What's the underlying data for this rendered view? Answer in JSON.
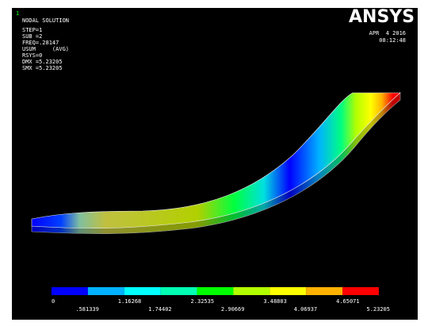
{
  "header": {
    "marker": "1",
    "title": "NODAL SOLUTION",
    "info": [
      "STEP=1",
      "SUB =2",
      "FREQ=.28147",
      "USUM     (AVG)",
      "RSYS=0",
      "DMX =5.23205",
      "SMX =5.23205"
    ]
  },
  "logo": "ANSYS",
  "date": "APR  4 2016",
  "time": "08:12:48",
  "legend": {
    "top_labels": [
      "0",
      "1.16268",
      "2.32535",
      "3.48803",
      "4.65071"
    ],
    "bottom_labels": [
      ".581339",
      "1.74402",
      "2.90669",
      "4.06937",
      "5.23205"
    ]
  }
}
